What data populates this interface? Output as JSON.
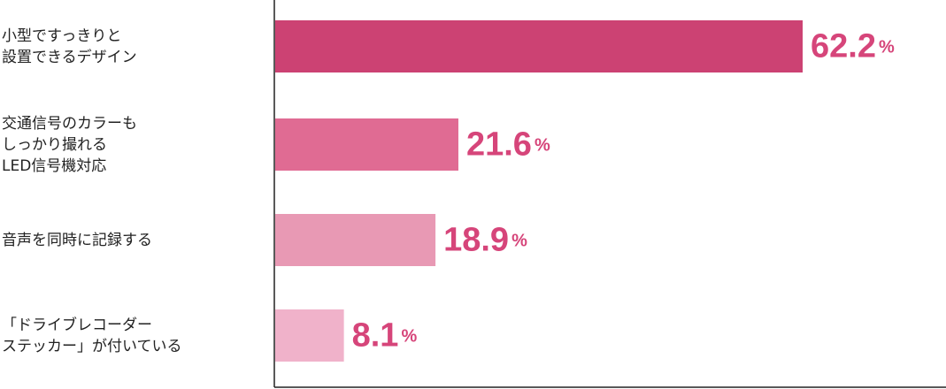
{
  "chart_data": {
    "type": "hbar",
    "categories": [
      "小型ですっきりと\n設置できるデザイン",
      "交通信号のカラーも\nしっかり撮れる\nLED信号機対応",
      "音声を同時に記録する",
      "「ドライブレコーダー\nステッカー」が付いている"
    ],
    "values": [
      62.2,
      21.6,
      18.9,
      8.1
    ],
    "value_labels": [
      "62.2%",
      "21.6%",
      "18.9%",
      "8.1%"
    ],
    "colors": [
      "#cc4273",
      "#e06b93",
      "#e899b4",
      "#f0b2ca"
    ],
    "label_color": "#d6457a",
    "xlim": [
      0,
      79
    ]
  }
}
